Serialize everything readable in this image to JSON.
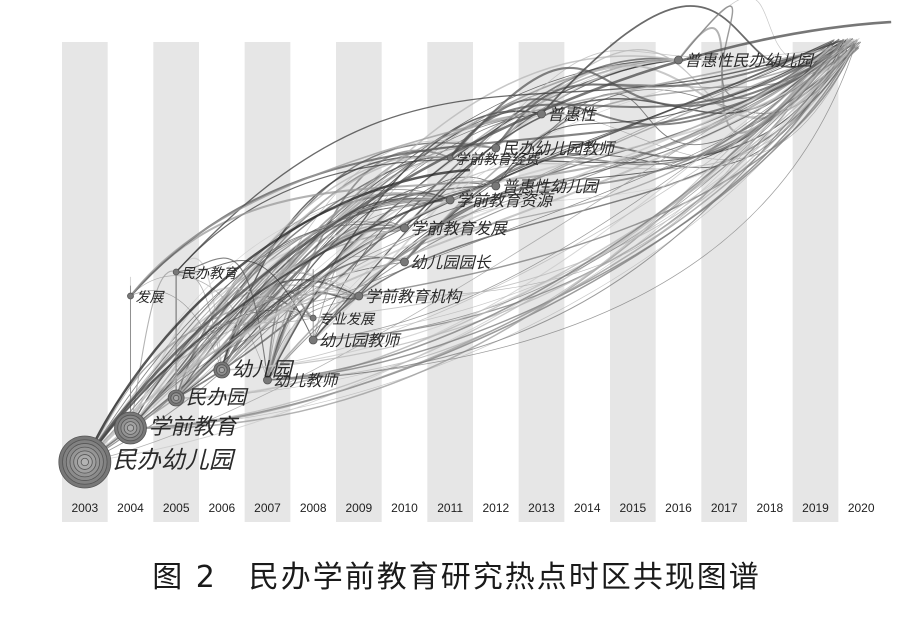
{
  "years": [
    "2003",
    "2004",
    "2005",
    "2006",
    "2007",
    "2008",
    "2009",
    "2010",
    "2011",
    "2012",
    "2013",
    "2014",
    "2015",
    "2016",
    "2017",
    "2018",
    "2019",
    "2020"
  ],
  "keywords": [
    {
      "label": "民办幼儿园",
      "year": "2003",
      "size": "xl"
    },
    {
      "label": "学前教育",
      "year": "2004",
      "size": "l"
    },
    {
      "label": "民办园",
      "year": "2005",
      "size": "m"
    },
    {
      "label": "幼儿园",
      "year": "2006",
      "size": "m"
    },
    {
      "label": "幼儿教师",
      "year": "2007",
      "size": "s"
    },
    {
      "label": "幼儿园教师",
      "year": "2008",
      "size": "s"
    },
    {
      "label": "专业发展",
      "year": "2008",
      "size": "xs"
    },
    {
      "label": "学前教育机构",
      "year": "2009",
      "size": "s"
    },
    {
      "label": "幼儿园园长",
      "year": "2010",
      "size": "s"
    },
    {
      "label": "学前教育发展",
      "year": "2010",
      "size": "s"
    },
    {
      "label": "学前教育资源",
      "year": "2011",
      "size": "s"
    },
    {
      "label": "学前教育经费",
      "year": "2011",
      "size": "xs"
    },
    {
      "label": "民办教育",
      "year": "2005",
      "size": "xs"
    },
    {
      "label": "发展",
      "year": "2004",
      "size": "xs"
    },
    {
      "label": "普惠性幼儿园",
      "year": "2012",
      "size": "s"
    },
    {
      "label": "民办幼儿园教师",
      "year": "2012",
      "size": "s"
    },
    {
      "label": "普惠性",
      "year": "2013",
      "size": "s"
    },
    {
      "label": "普惠性民办幼儿园",
      "year": "2016",
      "size": "s"
    }
  ],
  "caption": "图 2　民办学前教育研究热点时区共现图谱"
}
